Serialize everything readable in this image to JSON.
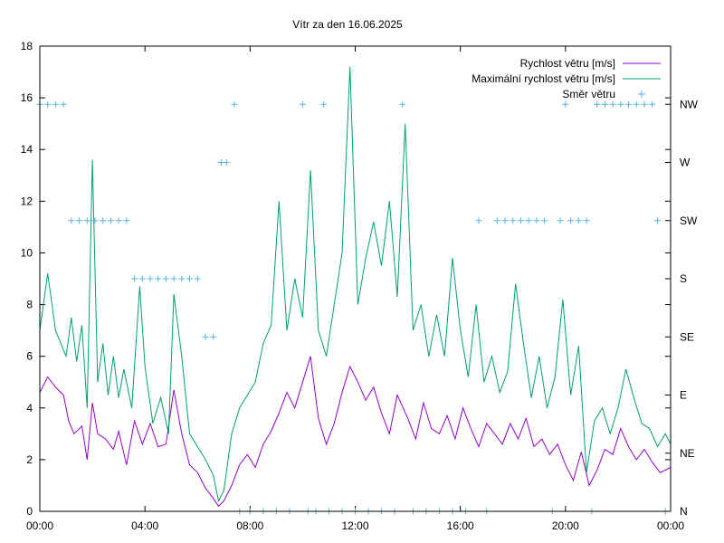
{
  "chart_data": {
    "type": "line",
    "title": "Vítr za den 16.06.2025",
    "xlabel": "",
    "ylabel": "",
    "x_ticks": [
      "00:00",
      "04:00",
      "08:00",
      "12:00",
      "16:00",
      "20:00",
      "00:00"
    ],
    "x_range_hours": [
      0,
      24
    ],
    "ylim": [
      0,
      18
    ],
    "y_ticks": [
      0,
      2,
      4,
      6,
      8,
      10,
      12,
      14,
      16,
      18
    ],
    "y2_ticks": [
      "N",
      "NE",
      "E",
      "SE",
      "S",
      "SW",
      "W",
      "NW"
    ],
    "grid": false,
    "legend": "top-right",
    "series": [
      {
        "name": "Rychlost větru [m/s]",
        "color": "#9400d3",
        "points": [
          [
            0.0,
            4.6
          ],
          [
            0.3,
            5.2
          ],
          [
            0.6,
            4.8
          ],
          [
            0.9,
            4.5
          ],
          [
            1.1,
            3.5
          ],
          [
            1.3,
            3.0
          ],
          [
            1.6,
            3.3
          ],
          [
            1.8,
            2.0
          ],
          [
            2.0,
            4.2
          ],
          [
            2.2,
            3.0
          ],
          [
            2.5,
            2.8
          ],
          [
            2.8,
            2.4
          ],
          [
            3.0,
            3.1
          ],
          [
            3.3,
            1.8
          ],
          [
            3.6,
            3.5
          ],
          [
            3.9,
            2.6
          ],
          [
            4.2,
            3.4
          ],
          [
            4.5,
            2.5
          ],
          [
            4.8,
            2.6
          ],
          [
            5.1,
            4.7
          ],
          [
            5.4,
            3.0
          ],
          [
            5.7,
            1.8
          ],
          [
            6.0,
            1.5
          ],
          [
            6.3,
            0.9
          ],
          [
            6.6,
            0.5
          ],
          [
            6.8,
            0.2
          ],
          [
            7.0,
            0.4
          ],
          [
            7.3,
            1.0
          ],
          [
            7.6,
            1.8
          ],
          [
            7.9,
            2.2
          ],
          [
            8.2,
            1.7
          ],
          [
            8.5,
            2.6
          ],
          [
            8.8,
            3.1
          ],
          [
            9.1,
            3.8
          ],
          [
            9.4,
            4.6
          ],
          [
            9.7,
            4.0
          ],
          [
            10.0,
            5.0
          ],
          [
            10.3,
            6.0
          ],
          [
            10.6,
            3.6
          ],
          [
            10.9,
            2.6
          ],
          [
            11.2,
            3.4
          ],
          [
            11.5,
            4.6
          ],
          [
            11.8,
            5.6
          ],
          [
            12.1,
            5.0
          ],
          [
            12.4,
            4.3
          ],
          [
            12.7,
            4.8
          ],
          [
            13.0,
            3.8
          ],
          [
            13.3,
            3.0
          ],
          [
            13.6,
            4.5
          ],
          [
            14.0,
            3.6
          ],
          [
            14.3,
            2.8
          ],
          [
            14.6,
            4.2
          ],
          [
            14.9,
            3.2
          ],
          [
            15.2,
            3.0
          ],
          [
            15.5,
            3.7
          ],
          [
            15.8,
            2.8
          ],
          [
            16.1,
            4.0
          ],
          [
            16.4,
            3.2
          ],
          [
            16.7,
            2.5
          ],
          [
            17.0,
            3.4
          ],
          [
            17.3,
            3.0
          ],
          [
            17.6,
            2.6
          ],
          [
            17.9,
            3.4
          ],
          [
            18.2,
            2.8
          ],
          [
            18.5,
            3.6
          ],
          [
            18.8,
            2.5
          ],
          [
            19.1,
            2.8
          ],
          [
            19.4,
            2.2
          ],
          [
            19.7,
            2.6
          ],
          [
            20.0,
            1.8
          ],
          [
            20.3,
            1.2
          ],
          [
            20.6,
            2.3
          ],
          [
            20.9,
            1.0
          ],
          [
            21.2,
            1.6
          ],
          [
            21.5,
            2.4
          ],
          [
            21.8,
            2.2
          ],
          [
            22.1,
            3.2
          ],
          [
            22.4,
            2.5
          ],
          [
            22.7,
            2.0
          ],
          [
            23.0,
            2.4
          ],
          [
            23.3,
            1.9
          ],
          [
            23.6,
            1.5
          ],
          [
            24.0,
            1.7
          ]
        ]
      },
      {
        "name": "Maximální rychlost větru [m/s]",
        "color": "#009e73",
        "points": [
          [
            0.0,
            7.0
          ],
          [
            0.3,
            9.2
          ],
          [
            0.6,
            7.0
          ],
          [
            0.8,
            6.5
          ],
          [
            1.0,
            6.0
          ],
          [
            1.2,
            7.5
          ],
          [
            1.4,
            5.8
          ],
          [
            1.6,
            7.2
          ],
          [
            1.8,
            4.0
          ],
          [
            2.0,
            13.6
          ],
          [
            2.2,
            5.0
          ],
          [
            2.4,
            6.5
          ],
          [
            2.6,
            4.5
          ],
          [
            2.8,
            6.0
          ],
          [
            3.0,
            4.4
          ],
          [
            3.2,
            5.5
          ],
          [
            3.5,
            4.0
          ],
          [
            3.8,
            8.7
          ],
          [
            4.0,
            5.6
          ],
          [
            4.3,
            3.4
          ],
          [
            4.6,
            4.4
          ],
          [
            4.9,
            3.0
          ],
          [
            5.1,
            8.4
          ],
          [
            5.4,
            6.0
          ],
          [
            5.7,
            3.0
          ],
          [
            6.0,
            2.5
          ],
          [
            6.3,
            2.0
          ],
          [
            6.6,
            1.4
          ],
          [
            6.8,
            0.4
          ],
          [
            7.0,
            0.8
          ],
          [
            7.3,
            3.0
          ],
          [
            7.6,
            4.0
          ],
          [
            7.9,
            4.5
          ],
          [
            8.2,
            5.0
          ],
          [
            8.5,
            6.5
          ],
          [
            8.8,
            7.2
          ],
          [
            9.1,
            12.0
          ],
          [
            9.4,
            7.0
          ],
          [
            9.7,
            9.0
          ],
          [
            10.0,
            7.5
          ],
          [
            10.3,
            13.2
          ],
          [
            10.6,
            7.0
          ],
          [
            10.9,
            6.0
          ],
          [
            11.2,
            8.0
          ],
          [
            11.5,
            10.0
          ],
          [
            11.8,
            17.2
          ],
          [
            12.1,
            8.0
          ],
          [
            12.4,
            9.8
          ],
          [
            12.7,
            11.2
          ],
          [
            13.0,
            9.5
          ],
          [
            13.3,
            12.0
          ],
          [
            13.6,
            8.3
          ],
          [
            13.9,
            15.0
          ],
          [
            14.2,
            7.0
          ],
          [
            14.5,
            8.0
          ],
          [
            14.8,
            6.0
          ],
          [
            15.1,
            7.6
          ],
          [
            15.4,
            6.0
          ],
          [
            15.7,
            9.8
          ],
          [
            16.0,
            7.0
          ],
          [
            16.3,
            5.2
          ],
          [
            16.6,
            8.0
          ],
          [
            16.9,
            5.0
          ],
          [
            17.2,
            6.0
          ],
          [
            17.5,
            4.6
          ],
          [
            17.8,
            5.4
          ],
          [
            18.1,
            8.8
          ],
          [
            18.4,
            6.5
          ],
          [
            18.7,
            4.4
          ],
          [
            19.0,
            6.0
          ],
          [
            19.3,
            4.0
          ],
          [
            19.6,
            5.2
          ],
          [
            19.9,
            8.2
          ],
          [
            20.2,
            4.5
          ],
          [
            20.5,
            6.4
          ],
          [
            20.8,
            1.5
          ],
          [
            21.1,
            3.5
          ],
          [
            21.4,
            4.0
          ],
          [
            21.7,
            3.0
          ],
          [
            22.0,
            4.0
          ],
          [
            22.3,
            5.5
          ],
          [
            22.6,
            4.4
          ],
          [
            22.9,
            3.4
          ],
          [
            23.2,
            3.2
          ],
          [
            23.5,
            2.5
          ],
          [
            23.8,
            3.0
          ],
          [
            24.0,
            2.6
          ]
        ]
      },
      {
        "name": "Směr větru",
        "color": "#56b4e9",
        "marker": "+",
        "points": [
          [
            0.0,
            "NW"
          ],
          [
            0.3,
            "NW"
          ],
          [
            0.6,
            "NW"
          ],
          [
            0.9,
            "NW"
          ],
          [
            1.2,
            "SW"
          ],
          [
            1.5,
            "SW"
          ],
          [
            1.8,
            "SW"
          ],
          [
            2.1,
            "SW"
          ],
          [
            2.4,
            "SW"
          ],
          [
            2.7,
            "SW"
          ],
          [
            3.0,
            "SW"
          ],
          [
            3.3,
            "SW"
          ],
          [
            3.6,
            "S"
          ],
          [
            3.9,
            "S"
          ],
          [
            4.2,
            "S"
          ],
          [
            4.5,
            "S"
          ],
          [
            4.8,
            "S"
          ],
          [
            5.1,
            "S"
          ],
          [
            5.4,
            "S"
          ],
          [
            5.7,
            "S"
          ],
          [
            6.0,
            "S"
          ],
          [
            6.3,
            "SE"
          ],
          [
            6.6,
            "SE"
          ],
          [
            6.9,
            "W"
          ],
          [
            7.1,
            "W"
          ],
          [
            7.4,
            "NW"
          ],
          [
            7.6,
            "N"
          ],
          [
            8.0,
            "N"
          ],
          [
            8.5,
            "N"
          ],
          [
            9.0,
            "N"
          ],
          [
            9.5,
            "N"
          ],
          [
            10.0,
            "NW"
          ],
          [
            10.2,
            "N"
          ],
          [
            10.5,
            "N"
          ],
          [
            10.8,
            "NW"
          ],
          [
            11.0,
            "N"
          ],
          [
            11.5,
            "N"
          ],
          [
            12.0,
            "N"
          ],
          [
            12.5,
            "N"
          ],
          [
            13.0,
            "N"
          ],
          [
            13.5,
            "N"
          ],
          [
            13.8,
            "NW"
          ],
          [
            14.2,
            "N"
          ],
          [
            14.7,
            "N"
          ],
          [
            15.2,
            "N"
          ],
          [
            15.7,
            "N"
          ],
          [
            16.2,
            "N"
          ],
          [
            16.7,
            "SW"
          ],
          [
            17.0,
            "N"
          ],
          [
            17.4,
            "SW"
          ],
          [
            17.7,
            "SW"
          ],
          [
            18.0,
            "SW"
          ],
          [
            18.3,
            "SW"
          ],
          [
            18.6,
            "SW"
          ],
          [
            18.9,
            "SW"
          ],
          [
            19.2,
            "SW"
          ],
          [
            19.5,
            "N"
          ],
          [
            19.8,
            "SW"
          ],
          [
            20.0,
            "NW"
          ],
          [
            20.2,
            "SW"
          ],
          [
            20.5,
            "SW"
          ],
          [
            20.8,
            "SW"
          ],
          [
            21.0,
            "N"
          ],
          [
            21.2,
            "NW"
          ],
          [
            21.5,
            "NW"
          ],
          [
            21.8,
            "NW"
          ],
          [
            22.1,
            "NW"
          ],
          [
            22.4,
            "NW"
          ],
          [
            22.7,
            "NW"
          ],
          [
            23.0,
            "NW"
          ],
          [
            23.3,
            "NW"
          ],
          [
            23.5,
            "SW"
          ],
          [
            23.8,
            "N"
          ]
        ]
      }
    ]
  }
}
